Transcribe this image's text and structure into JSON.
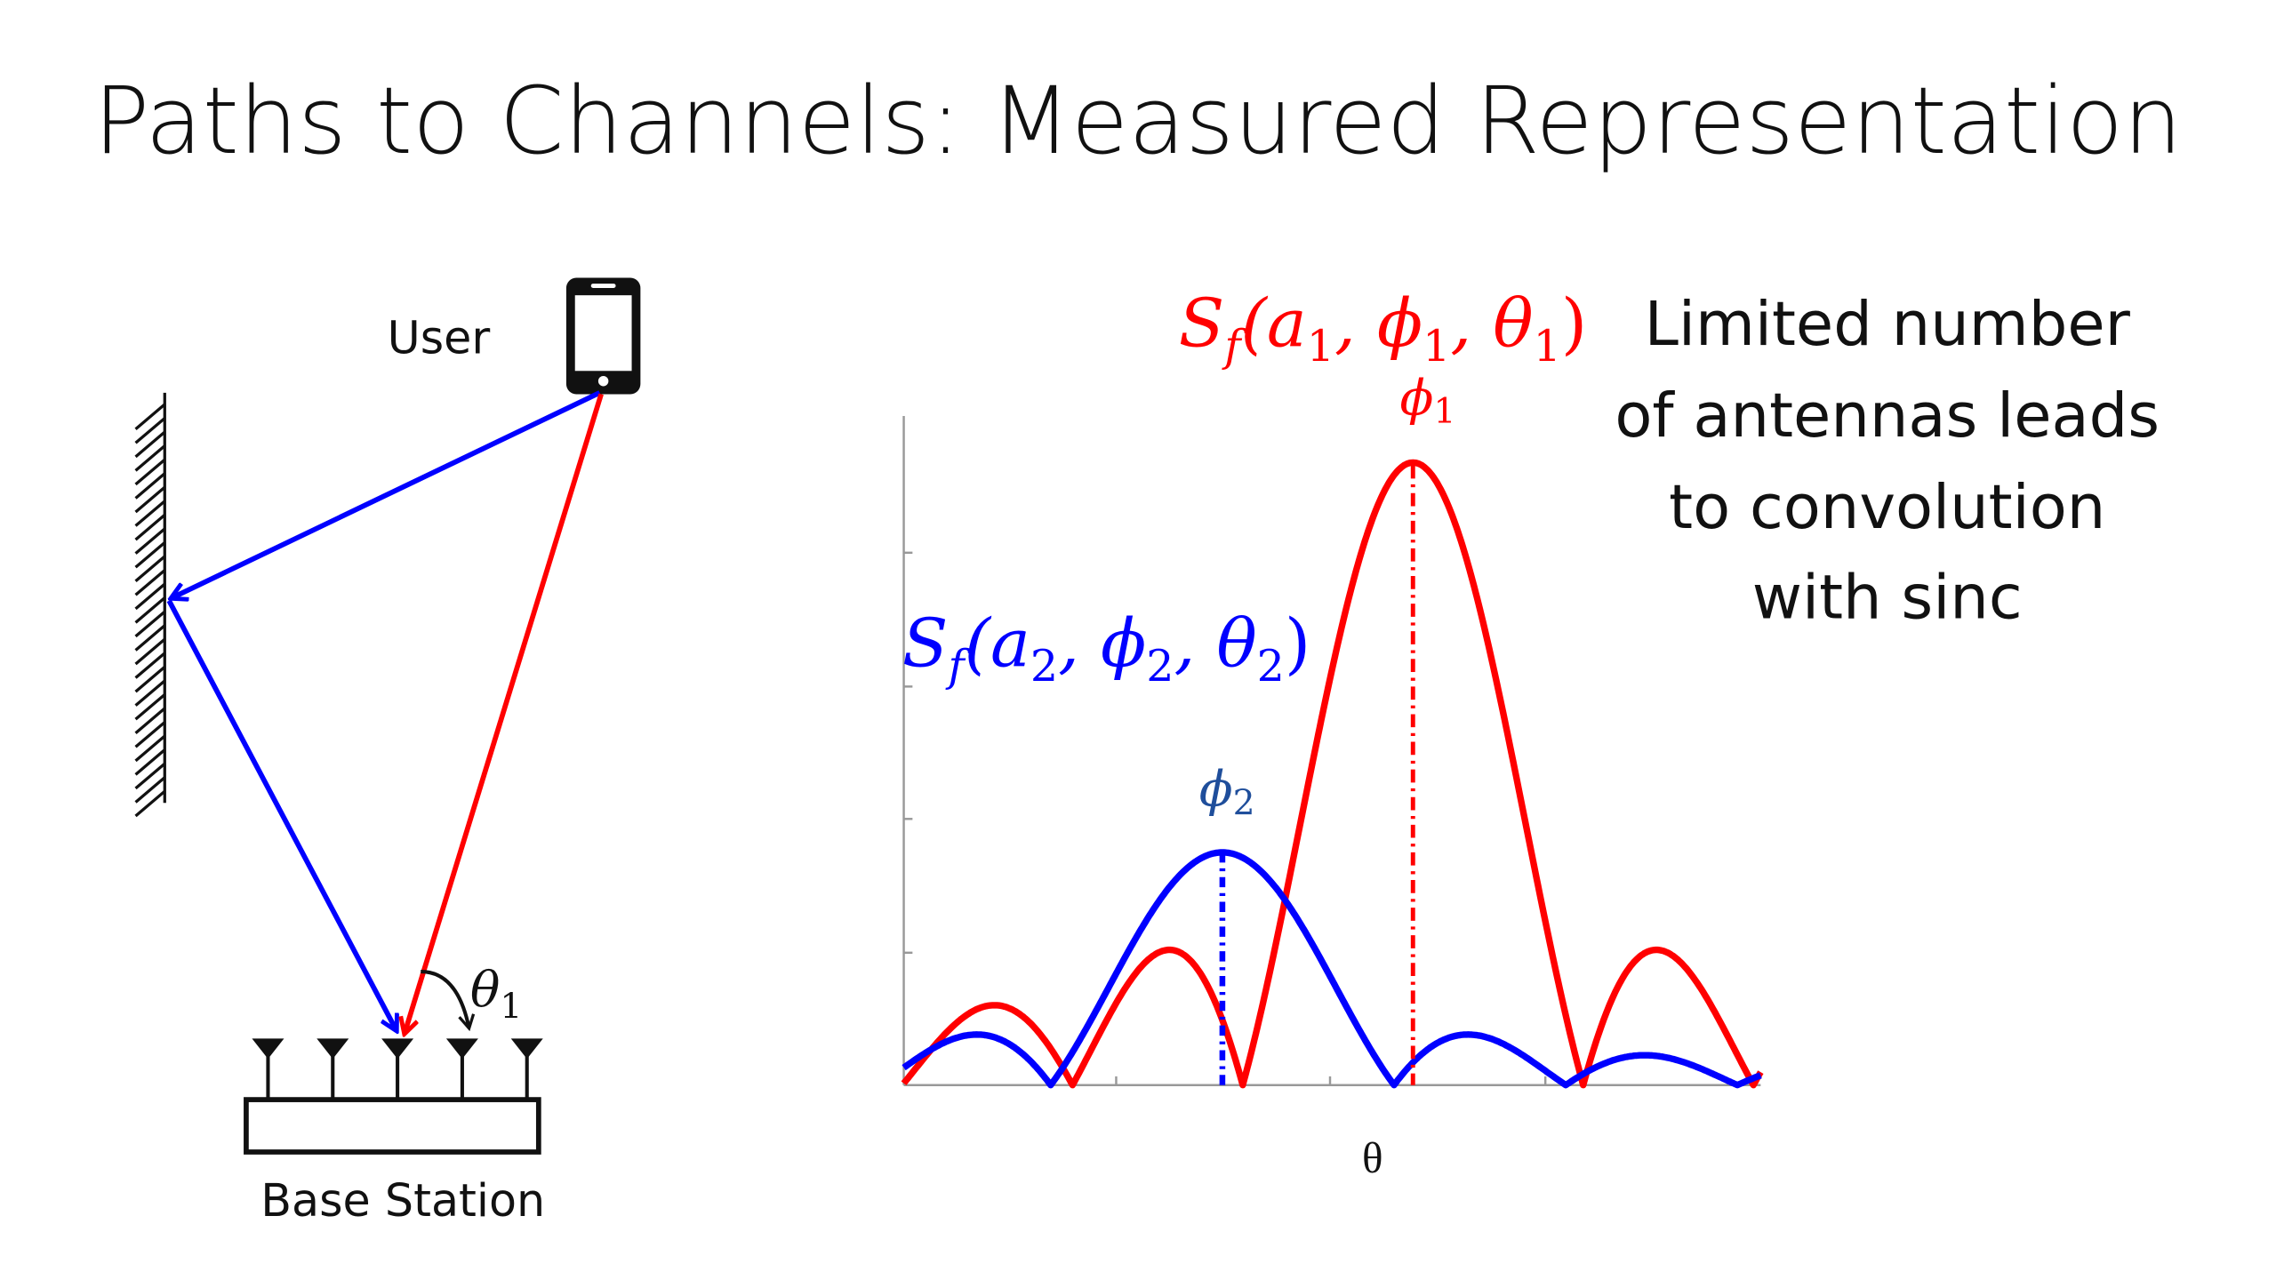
{
  "title": "Paths to Channels: Measured Representation",
  "left_diagram": {
    "user_label": "User",
    "base_station_label": "Base Station",
    "angle_label": {
      "symbol": "θ",
      "sub": "1"
    },
    "antenna_count": 5
  },
  "right_plot": {
    "x_label": "θ",
    "path1_label": {
      "S": "S",
      "f": "f",
      "args": "(a",
      "a_sub": "1",
      "mid1": ", ϕ",
      "phi_sub": "1",
      "mid2": ", θ",
      "theta_sub": "1",
      "close": ")"
    },
    "path2_label": {
      "S": "S",
      "f": "f",
      "args": "(a",
      "a_sub": "2",
      "mid1": ", ϕ",
      "phi_sub": "2",
      "mid2": ", θ",
      "theta_sub": "2",
      "close": ")"
    },
    "phi1_label": {
      "symbol": "ϕ",
      "sub": "1"
    },
    "phi2_label": {
      "symbol": "ϕ",
      "sub": "2"
    }
  },
  "note_lines": [
    "Limited number",
    "of antennas leads",
    "to convolution",
    "with sinc"
  ],
  "chart_data": {
    "type": "line",
    "xlabel": "θ",
    "series": [
      {
        "color": "#ff0000",
        "peak_label": "ϕ1",
        "relative_peak": 1.0
      },
      {
        "color": "#0000ff",
        "peak_label": "ϕ2",
        "relative_peak": 0.37
      }
    ]
  },
  "colors": {
    "red": "#ff0000",
    "blue": "#0000ff",
    "dark_blue": "#1f4e9b",
    "black": "#111111"
  }
}
